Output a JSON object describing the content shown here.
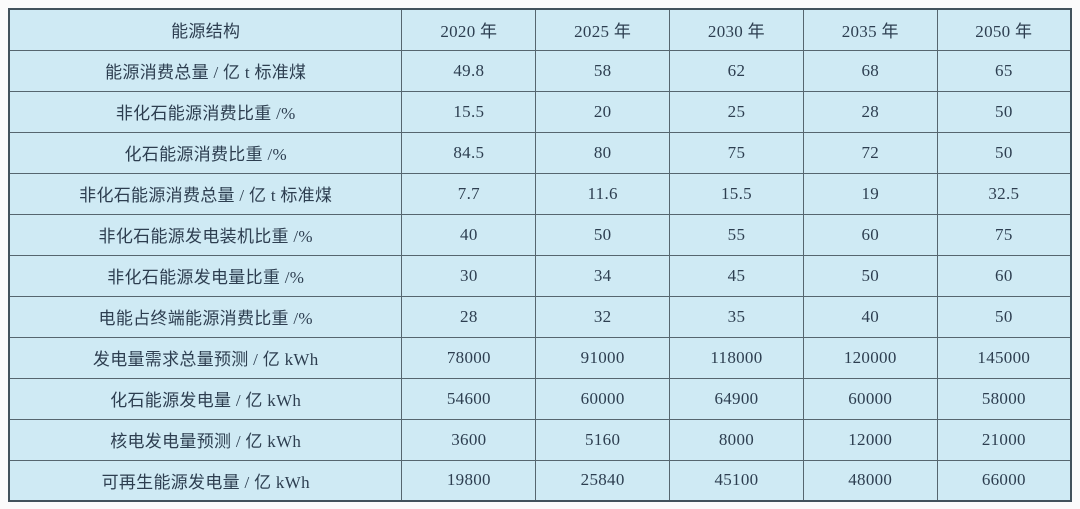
{
  "chart_data": {
    "type": "table",
    "columns": [
      "能源结构",
      "2020 年",
      "2025 年",
      "2030 年",
      "2035 年",
      "2050 年"
    ],
    "rows": [
      {
        "label": "能源消费总量 / 亿 t 标准煤",
        "values": [
          "49.8",
          "58",
          "62",
          "68",
          "65"
        ]
      },
      {
        "label": "非化石能源消费比重 /%",
        "values": [
          "15.5",
          "20",
          "25",
          "28",
          "50"
        ]
      },
      {
        "label": "化石能源消费比重 /%",
        "values": [
          "84.5",
          "80",
          "75",
          "72",
          "50"
        ]
      },
      {
        "label": "非化石能源消费总量 / 亿 t 标准煤",
        "values": [
          "7.7",
          "11.6",
          "15.5",
          "19",
          "32.5"
        ]
      },
      {
        "label": "非化石能源发电装机比重 /%",
        "values": [
          "40",
          "50",
          "55",
          "60",
          "75"
        ]
      },
      {
        "label": "非化石能源发电量比重 /%",
        "values": [
          "30",
          "34",
          "45",
          "50",
          "60"
        ]
      },
      {
        "label": "电能占终端能源消费比重 /%",
        "values": [
          "28",
          "32",
          "35",
          "40",
          "50"
        ]
      },
      {
        "label": "发电量需求总量预测 / 亿 kWh",
        "values": [
          "78000",
          "91000",
          "118000",
          "120000",
          "145000"
        ]
      },
      {
        "label": "化石能源发电量 / 亿 kWh",
        "values": [
          "54600",
          "60000",
          "64900",
          "60000",
          "58000"
        ]
      },
      {
        "label": "核电发电量预测 / 亿 kWh",
        "values": [
          "3600",
          "5160",
          "8000",
          "12000",
          "21000"
        ]
      },
      {
        "label": "可再生能源发电量 / 亿 kWh",
        "values": [
          "19800",
          "25840",
          "45100",
          "48000",
          "66000"
        ]
      }
    ]
  },
  "colors": {
    "page_bg": "#fbfbfb",
    "cell_bg": "#cfeaf4",
    "grid_line": "#56666f",
    "outer_border": "#42525c",
    "text": "#2d3e50"
  }
}
